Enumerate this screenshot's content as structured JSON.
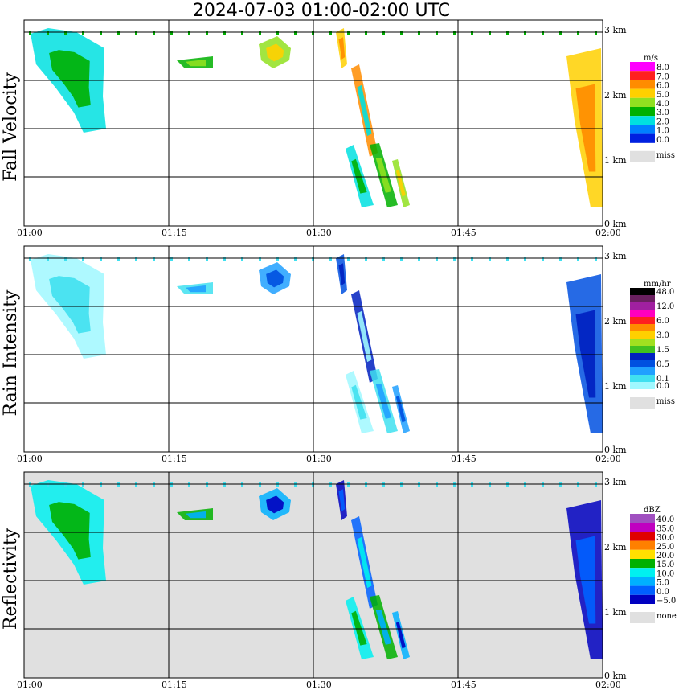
{
  "title": "2024-07-03  01:00-02:00 UTC",
  "x_ticks": [
    "01:00",
    "01:15",
    "01:30",
    "01:45",
    "02:00"
  ],
  "height_ticks": [
    "3 km",
    "2 km",
    "1 km",
    "0 km"
  ],
  "missing_color": "#e0e0e0",
  "panels": [
    {
      "id": "fall-velocity",
      "ylabel": "Fall Velocity",
      "unit": "m/s",
      "background": "#ffffff",
      "legend": [
        {
          "label": "8.0",
          "color": "#ff00ff"
        },
        {
          "label": "7.0",
          "color": "#ff2020"
        },
        {
          "label": "6.0",
          "color": "#ff8c00"
        },
        {
          "label": "5.0",
          "color": "#ffd000"
        },
        {
          "label": "4.0",
          "color": "#90e020"
        },
        {
          "label": "3.0",
          "color": "#00b000"
        },
        {
          "label": "2.0",
          "color": "#00e0e0"
        },
        {
          "label": "1.0",
          "color": "#0080ff"
        },
        {
          "label": "0.0",
          "color": "#0020e0"
        }
      ],
      "miss_label": "miss"
    },
    {
      "id": "rain-intensity",
      "ylabel": "Rain Intensity",
      "unit": "mm/hr",
      "background": "#ffffff",
      "legend": [
        {
          "label": "48.0",
          "color": "#000000"
        },
        {
          "label": "",
          "color": "#6a2060"
        },
        {
          "label": "12.0",
          "color": "#a020a0"
        },
        {
          "label": "",
          "color": "#ff00c0"
        },
        {
          "label": "6.0",
          "color": "#ff2020"
        },
        {
          "label": "",
          "color": "#ff8c00"
        },
        {
          "label": "3.0",
          "color": "#ffd000"
        },
        {
          "label": "",
          "color": "#a0e020"
        },
        {
          "label": "1.5",
          "color": "#40c020"
        },
        {
          "label": "",
          "color": "#0020c0"
        },
        {
          "label": "0.5",
          "color": "#0050e0"
        },
        {
          "label": "",
          "color": "#20a0ff"
        },
        {
          "label": "0.1",
          "color": "#40e0f0"
        },
        {
          "label": "0.0",
          "color": "#a0f8ff"
        }
      ],
      "miss_label": "miss"
    },
    {
      "id": "reflectivity",
      "ylabel": "Reflectivity",
      "unit": "dBZ",
      "background": "#e0e0e0",
      "legend": [
        {
          "label": "40.0",
          "color": "#a050c0"
        },
        {
          "label": "35.0",
          "color": "#c000c0"
        },
        {
          "label": "30.0",
          "color": "#e00000"
        },
        {
          "label": "25.0",
          "color": "#ff8000"
        },
        {
          "label": "20.0",
          "color": "#ffe000"
        },
        {
          "label": "15.0",
          "color": "#00b000"
        },
        {
          "label": "10.0",
          "color": "#00f0f0"
        },
        {
          "label": "5.0",
          "color": "#00b0ff"
        },
        {
          "label": "0.0",
          "color": "#0060ff"
        },
        {
          "label": "−5.0",
          "color": "#0000c0"
        }
      ],
      "miss_label": "none"
    }
  ]
}
